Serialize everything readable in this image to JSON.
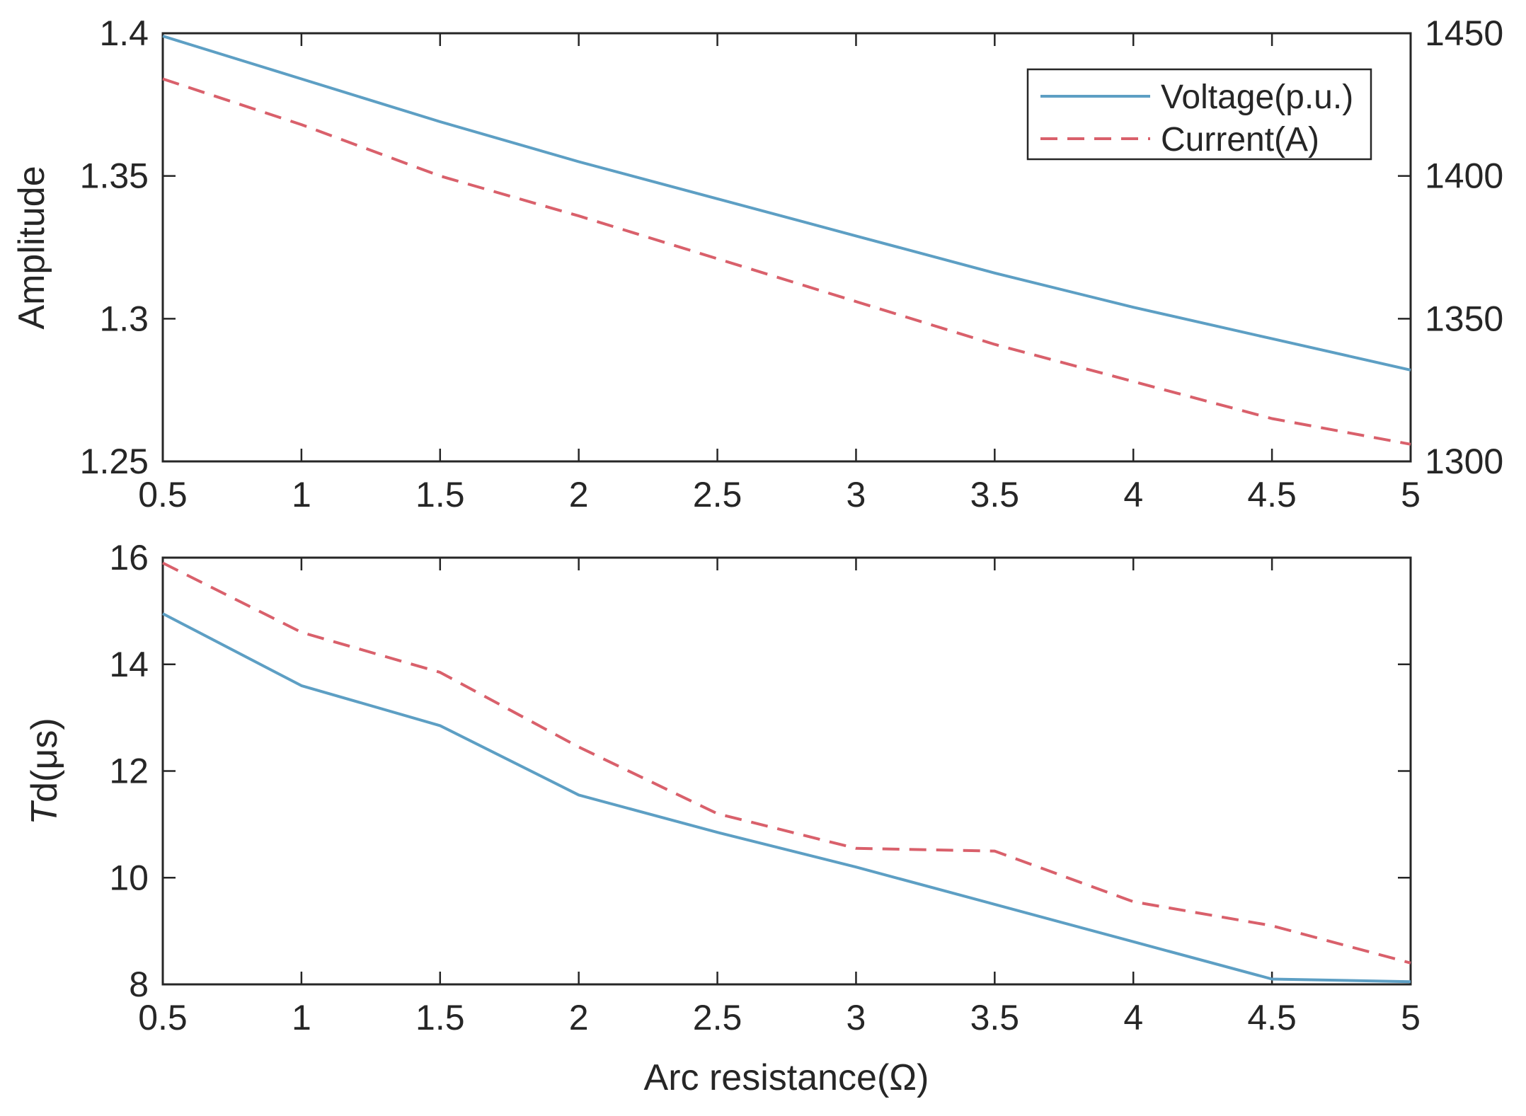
{
  "chart_data": [
    {
      "type": "line",
      "x": [
        0.5,
        1,
        1.5,
        2,
        2.5,
        3,
        3.5,
        4,
        4.5,
        5
      ],
      "xlim": [
        0.5,
        5
      ],
      "xticks": [
        "0.5",
        "1",
        "1.5",
        "2",
        "2.5",
        "3",
        "3.5",
        "4",
        "4.5",
        "5"
      ],
      "ylabel": "Amplitude",
      "ylim": [
        1.25,
        1.4
      ],
      "yticks": [
        "1.25",
        "1.3",
        "1.35",
        "1.4"
      ],
      "y2lim": [
        1300,
        1450
      ],
      "y2ticks": [
        "1300",
        "1350",
        "1400",
        "1450"
      ],
      "legend_position": "top-right",
      "series": [
        {
          "name": "Voltage(p.u.)",
          "axis": "left",
          "style": "solid",
          "color": "#5d9fc4",
          "values": [
            1.399,
            1.384,
            1.369,
            1.355,
            1.342,
            1.329,
            1.316,
            1.304,
            1.293,
            1.282
          ]
        },
        {
          "name": "Current(A)",
          "axis": "right",
          "style": "dashed",
          "color": "#d9606b",
          "values": [
            1434,
            1418,
            1400,
            1386,
            1371,
            1356,
            1341,
            1328,
            1315,
            1306
          ]
        }
      ]
    },
    {
      "type": "line",
      "x": [
        0.5,
        1,
        1.5,
        2,
        2.5,
        3,
        3.5,
        4,
        4.5,
        5
      ],
      "xlim": [
        0.5,
        5
      ],
      "xticks": [
        "0.5",
        "1",
        "1.5",
        "2",
        "2.5",
        "3",
        "3.5",
        "4",
        "4.5",
        "5"
      ],
      "xlabel": "Arc resistance(Ω)",
      "ylabel_italic": "T",
      "ylabel_rest": "d(μs)",
      "ylim": [
        8,
        16
      ],
      "yticks": [
        "8",
        "10",
        "12",
        "14",
        "16"
      ],
      "series": [
        {
          "name": "Voltage",
          "style": "solid",
          "color": "#5d9fc4",
          "values": [
            14.95,
            13.6,
            12.85,
            11.55,
            10.85,
            10.2,
            9.5,
            8.8,
            8.1,
            8.05
          ]
        },
        {
          "name": "Current",
          "style": "dashed",
          "color": "#d9606b",
          "values": [
            15.9,
            14.6,
            13.85,
            12.45,
            11.2,
            10.55,
            10.5,
            9.55,
            9.1,
            8.4
          ]
        }
      ]
    }
  ]
}
